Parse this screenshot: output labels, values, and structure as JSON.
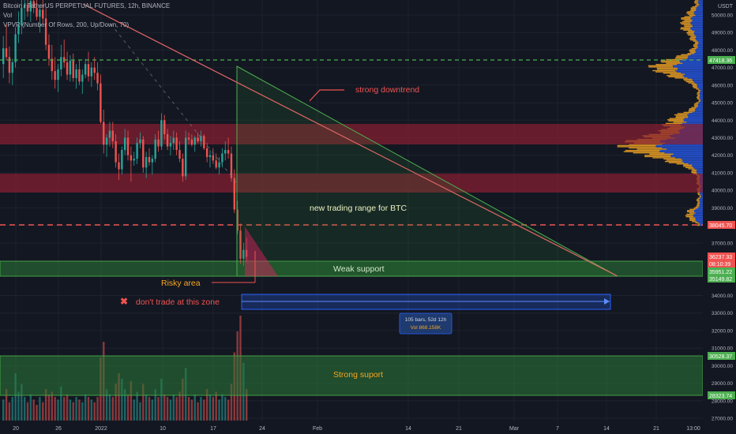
{
  "header": {
    "symbol_line": "Bitcoin / TetherUS PERPETUAL FUTURES, 12h, BINANCE",
    "vol_line": "Vol",
    "vpvr_line": "VPVR (Number Of Rows, 200, Up/Down, 70)"
  },
  "price_axis": {
    "currency": "USDT",
    "ticks": [
      "50000.00",
      "49000.00",
      "48000.00",
      "47000.00",
      "46000.00",
      "45000.00",
      "44000.00",
      "43000.00",
      "42000.00",
      "41000.00",
      "40000.00",
      "39000.00",
      "38000.00",
      "37000.00",
      "34000.00",
      "33000.00",
      "32000.00",
      "31000.00",
      "30000.00",
      "29000.00",
      "28000.00",
      "27000.00"
    ],
    "labels": {
      "level_47418": "47418.36",
      "level_38045": "38045.70",
      "current_price": "36237.33",
      "countdown": "08:10:39",
      "level_35951": "35951.22",
      "level_35149": "35149.82",
      "level_30528": "30528.37",
      "level_28323": "28323.74"
    }
  },
  "time_axis": {
    "ticks": [
      "20",
      "26",
      "2022",
      "10",
      "17",
      "24",
      "Feb",
      "14",
      "21",
      "Mar",
      "7",
      "14",
      "21",
      "13:00"
    ]
  },
  "annotations": {
    "strong_downtrend": "strong downtrend",
    "trading_range": "new trading range for BTC",
    "weak_support": "Weak support",
    "risky_area": "Risky area",
    "dont_trade": "don't trade at this zone",
    "strong_support": "Strong suport",
    "measure_bars": "105 bars, 52d 12h",
    "measure_vol": "Vol 868.158K"
  },
  "colors": {
    "background": "#131722",
    "bull": "#26a69a",
    "bear": "#ef5350",
    "zone_red": "#8a2030",
    "zone_green": "#2b7a36",
    "label_orange": "#f5a623",
    "label_red": "#ef5350",
    "measure_blue": "#2962ff"
  },
  "chart_data": {
    "type": "candlestick",
    "interval": "12h",
    "ylim": [
      26600,
      51000
    ],
    "horizontal_levels": [
      47418.36,
      38045.7,
      35951.22,
      35149.82,
      30528.37,
      28323.74
    ],
    "current_price": 36237.33,
    "red_zones": [
      [
        42700,
        43700
      ],
      [
        39900,
        41000
      ]
    ],
    "green_zones": [
      [
        35149.82,
        35951.22
      ],
      [
        28323.74,
        30528.37
      ]
    ],
    "candles": [
      [
        47200,
        48800,
        46400,
        48100
      ],
      [
        48100,
        49500,
        47400,
        47600
      ],
      [
        47600,
        48200,
        46100,
        46700
      ],
      [
        46700,
        47500,
        46000,
        47300
      ],
      [
        47300,
        49300,
        47000,
        48900
      ],
      [
        48900,
        50200,
        48400,
        49400
      ],
      [
        49400,
        51000,
        48900,
        50400
      ],
      [
        50400,
        51000,
        49700,
        50600
      ],
      [
        50600,
        51000,
        49900,
        50200
      ],
      [
        50200,
        51000,
        49600,
        50800
      ],
      [
        50800,
        51000,
        50100,
        50400
      ],
      [
        50400,
        51000,
        49700,
        49900
      ],
      [
        49900,
        50600,
        49000,
        50300
      ],
      [
        50300,
        50900,
        49500,
        49800
      ],
      [
        49800,
        50400,
        48000,
        48300
      ],
      [
        48300,
        48900,
        47100,
        47500
      ],
      [
        47500,
        48300,
        46300,
        46800
      ],
      [
        46800,
        47600,
        45800,
        46300
      ],
      [
        46300,
        47200,
        45600,
        46900
      ],
      [
        46900,
        48300,
        46500,
        47600
      ],
      [
        47600,
        48600,
        47000,
        47300
      ],
      [
        47300,
        47900,
        46300,
        46600
      ],
      [
        46600,
        47700,
        46200,
        47400
      ],
      [
        47400,
        47800,
        46200,
        46400
      ],
      [
        46400,
        47200,
        45800,
        46900
      ],
      [
        46900,
        47400,
        46000,
        46200
      ],
      [
        46200,
        46900,
        45500,
        46600
      ],
      [
        46600,
        47500,
        46400,
        47200
      ],
      [
        47200,
        47900,
        46200,
        46500
      ],
      [
        46500,
        47300,
        45900,
        47000
      ],
      [
        47000,
        47600,
        46300,
        46700
      ],
      [
        46700,
        47300,
        45700,
        46100
      ],
      [
        46100,
        46600,
        43800,
        43900
      ],
      [
        43900,
        44600,
        42100,
        42600
      ],
      [
        42600,
        43200,
        41900,
        43000
      ],
      [
        43000,
        43900,
        42500,
        43400
      ],
      [
        43400,
        43900,
        42400,
        42800
      ],
      [
        42800,
        43200,
        41300,
        41600
      ],
      [
        41600,
        42100,
        40600,
        41200
      ],
      [
        41200,
        42500,
        40900,
        42300
      ],
      [
        42300,
        43500,
        42000,
        43000
      ],
      [
        43000,
        43400,
        41700,
        42000
      ],
      [
        42000,
        42500,
        40500,
        41700
      ],
      [
        41700,
        42200,
        41400,
        41800
      ],
      [
        41800,
        43000,
        41500,
        42700
      ],
      [
        42700,
        43300,
        42400,
        42900
      ],
      [
        42900,
        43100,
        41000,
        41300
      ],
      [
        41300,
        42200,
        40700,
        41900
      ],
      [
        41900,
        42400,
        41400,
        41600
      ],
      [
        41600,
        42000,
        40900,
        41800
      ],
      [
        41800,
        43200,
        41600,
        42900
      ],
      [
        42900,
        43400,
        42200,
        42500
      ],
      [
        42500,
        44400,
        42300,
        44000
      ],
      [
        44000,
        44300,
        42900,
        43200
      ],
      [
        43200,
        43500,
        42300,
        42500
      ],
      [
        42500,
        43100,
        42000,
        42700
      ],
      [
        42700,
        43400,
        42300,
        43000
      ],
      [
        43000,
        43300,
        42000,
        42300
      ],
      [
        42300,
        42800,
        41600,
        41800
      ],
      [
        41800,
        42100,
        40500,
        40800
      ],
      [
        40800,
        43400,
        40600,
        43000
      ],
      [
        43000,
        43300,
        42600,
        42900
      ],
      [
        42900,
        43200,
        42500,
        42600
      ],
      [
        42600,
        43100,
        42200,
        43000
      ],
      [
        43000,
        43300,
        42700,
        42800
      ],
      [
        42800,
        43400,
        42500,
        43100
      ],
      [
        43100,
        43200,
        42300,
        42400
      ],
      [
        42400,
        42700,
        41600,
        41900
      ],
      [
        41900,
        42300,
        41300,
        42000
      ],
      [
        42000,
        42400,
        41500,
        41700
      ],
      [
        41700,
        42100,
        41200,
        41300
      ],
      [
        41300,
        41900,
        40900,
        41600
      ],
      [
        41600,
        42400,
        41300,
        42100
      ],
      [
        42100,
        42800,
        41700,
        42300
      ],
      [
        42300,
        43000,
        41800,
        42100
      ],
      [
        42100,
        42500,
        40500,
        40700
      ],
      [
        40700,
        41200,
        38700,
        38900
      ],
      [
        38900,
        39400,
        37500,
        37700
      ],
      [
        37700,
        38100,
        35800,
        36100
      ],
      [
        36100,
        37000,
        35700,
        36600
      ],
      [
        36600,
        37300,
        35900,
        36200
      ]
    ],
    "volume": [
      8,
      12,
      7,
      9,
      18,
      11,
      14,
      9,
      7,
      10,
      8,
      6,
      9,
      7,
      12,
      10,
      11,
      9,
      8,
      13,
      9,
      10,
      8,
      7,
      9,
      8,
      7,
      10,
      9,
      8,
      7,
      9,
      24,
      30,
      12,
      10,
      9,
      14,
      18,
      16,
      12,
      10,
      15,
      8,
      11,
      7,
      14,
      10,
      9,
      8,
      12,
      9,
      16,
      10,
      9,
      8,
      10,
      9,
      11,
      16,
      20,
      9,
      8,
      10,
      7,
      9,
      8,
      12,
      10,
      9,
      11,
      8,
      10,
      9,
      8,
      14,
      26,
      34,
      40,
      22,
      12
    ]
  }
}
